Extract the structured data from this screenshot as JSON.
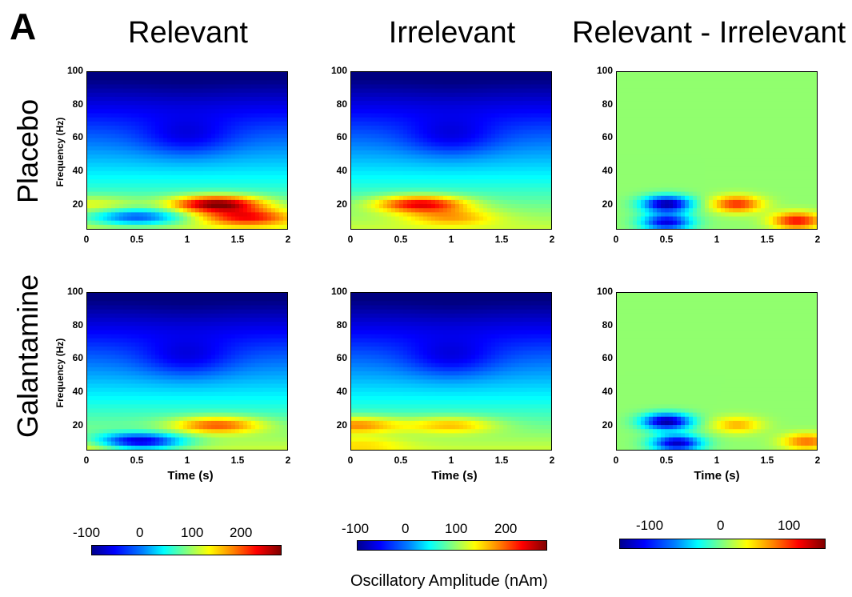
{
  "panel_letter": "A",
  "column_titles": [
    "Relevant",
    "Irrelevant",
    "Relevant - Irrelevant"
  ],
  "row_titles": [
    "Placebo",
    "Galantamine"
  ],
  "colorbar_title": "Oscillatory Amplitude (nAm)",
  "chart_data": [
    {
      "type": "heatmap",
      "row": "Placebo",
      "column": "Relevant",
      "xlabel": "",
      "ylabel": "Frequency (Hz)",
      "xlim": [
        0,
        2
      ],
      "ylim": [
        5,
        100
      ],
      "x_ticks": [
        "0",
        "0.5",
        "1",
        "1.5",
        "2"
      ],
      "y_ticks": [
        "20",
        "40",
        "60",
        "80",
        "100"
      ],
      "features": [
        {
          "t": 0.05,
          "f": 20,
          "value": 130
        },
        {
          "t": 0.5,
          "f": 12,
          "value": -20
        },
        {
          "t": 1.3,
          "f": 20,
          "value": 280
        },
        {
          "t": 1.6,
          "f": 12,
          "value": 230
        },
        {
          "t": 1.0,
          "f": 60,
          "value": -60
        },
        {
          "t": 1.0,
          "f": 90,
          "value": -90
        }
      ]
    },
    {
      "type": "heatmap",
      "row": "Placebo",
      "column": "Irrelevant",
      "xlabel": "",
      "ylabel": "",
      "xlim": [
        0,
        2
      ],
      "ylim": [
        5,
        100
      ],
      "x_ticks": [
        "0",
        "0.5",
        "1",
        "1.5",
        "2"
      ],
      "y_ticks": [
        "20",
        "40",
        "60",
        "80",
        "100"
      ],
      "features": [
        {
          "t": 0.7,
          "f": 20,
          "value": 240
        },
        {
          "t": 1.0,
          "f": 12,
          "value": 170
        },
        {
          "t": 1.0,
          "f": 60,
          "value": -60
        },
        {
          "t": 1.0,
          "f": 90,
          "value": -90
        }
      ]
    },
    {
      "type": "heatmap",
      "row": "Placebo",
      "column": "Relevant - Irrelevant",
      "xlabel": "",
      "ylabel": "",
      "xlim": [
        0,
        2
      ],
      "ylim": [
        5,
        100
      ],
      "x_ticks": [
        "0",
        "0.5",
        "1",
        "1.5",
        "2"
      ],
      "y_ticks": [
        "20",
        "40",
        "60",
        "80",
        "100"
      ],
      "features": [
        {
          "t": 0.5,
          "f": 20,
          "value": -140
        },
        {
          "t": 0.5,
          "f": 9,
          "value": -120
        },
        {
          "t": 1.2,
          "f": 20,
          "value": 100
        },
        {
          "t": 1.8,
          "f": 10,
          "value": 110
        },
        {
          "t": 1.0,
          "f": 60,
          "value": 5
        }
      ]
    },
    {
      "type": "heatmap",
      "row": "Galantamine",
      "column": "Relevant",
      "xlabel": "Time (s)",
      "ylabel": "Frequency (Hz)",
      "xlim": [
        0,
        2
      ],
      "ylim": [
        5,
        100
      ],
      "x_ticks": [
        "0",
        "0.5",
        "1",
        "1.5",
        "2"
      ],
      "y_ticks": [
        "20",
        "40",
        "60",
        "80",
        "100"
      ],
      "features": [
        {
          "t": 1.3,
          "f": 20,
          "value": 200
        },
        {
          "t": 0.5,
          "f": 10,
          "value": -80
        },
        {
          "t": 0.1,
          "f": 8,
          "value": 150
        },
        {
          "t": 1.0,
          "f": 60,
          "value": -60
        },
        {
          "t": 1.0,
          "f": 90,
          "value": -90
        }
      ]
    },
    {
      "type": "heatmap",
      "row": "Galantamine",
      "column": "Irrelevant",
      "xlabel": "Time (s)",
      "ylabel": "",
      "xlim": [
        0,
        2
      ],
      "ylim": [
        5,
        100
      ],
      "x_ticks": [
        "0",
        "0.5",
        "1",
        "1.5",
        "2"
      ],
      "y_ticks": [
        "20",
        "40",
        "60",
        "80",
        "100"
      ],
      "features": [
        {
          "t": 0.05,
          "f": 20,
          "value": 180
        },
        {
          "t": 1.0,
          "f": 20,
          "value": 160
        },
        {
          "t": 0.1,
          "f": 8,
          "value": 150
        },
        {
          "t": 1.0,
          "f": 60,
          "value": -60
        },
        {
          "t": 1.0,
          "f": 90,
          "value": -90
        }
      ]
    },
    {
      "type": "heatmap",
      "row": "Galantamine",
      "column": "Relevant - Irrelevant",
      "xlabel": "Time (s)",
      "ylabel": "",
      "xlim": [
        0,
        2
      ],
      "ylim": [
        5,
        100
      ],
      "x_ticks": [
        "0",
        "0.5",
        "1",
        "1.5",
        "2"
      ],
      "y_ticks": [
        "20",
        "40",
        "60",
        "80",
        "100"
      ],
      "features": [
        {
          "t": 0.5,
          "f": 22,
          "value": -140
        },
        {
          "t": 0.6,
          "f": 9,
          "value": -130
        },
        {
          "t": 1.2,
          "f": 20,
          "value": 60
        },
        {
          "t": 1.9,
          "f": 10,
          "value": 80
        },
        {
          "t": 1.0,
          "f": 60,
          "value": 5
        }
      ]
    }
  ],
  "colorbars": [
    {
      "ticks": [
        "-100",
        "0",
        "100",
        "200"
      ],
      "colormap": "jet"
    },
    {
      "ticks": [
        "-100",
        "0",
        "100",
        "200"
      ],
      "colormap": "jet"
    },
    {
      "ticks": [
        "-100",
        "0",
        "100"
      ],
      "colormap": "jet"
    }
  ]
}
